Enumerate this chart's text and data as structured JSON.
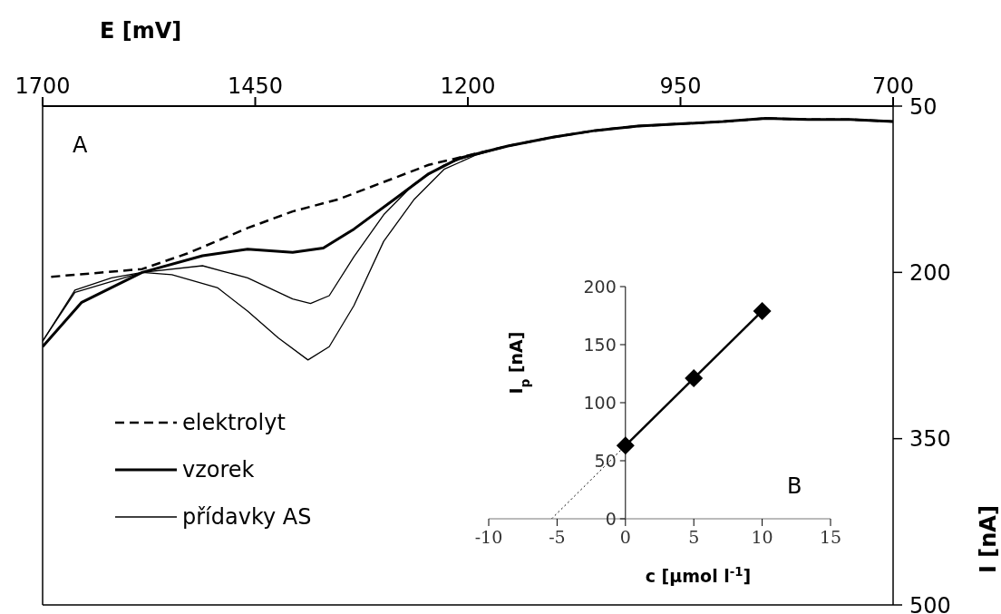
{
  "chart_data": [
    {
      "type": "line",
      "xlabel": "E [mV]",
      "ylabel": "I [nA]",
      "xlim": [
        1700,
        700
      ],
      "xticks": [
        1700,
        1450,
        1200,
        950,
        700
      ],
      "ylim": [
        500,
        50
      ],
      "yticks": [
        50,
        200,
        350,
        500
      ],
      "legend": "bottom left",
      "annotations": [
        "A"
      ],
      "series": [
        {
          "name": "elektrolyt",
          "color": "#000000",
          "line_style": "dashed",
          "x": [
            1690,
            1583,
            1530,
            1459,
            1406,
            1352,
            1246,
            1153,
            1100,
            1050,
            1000,
            950,
            900,
            850,
            800,
            750,
            700
          ],
          "values": [
            204,
            197,
            183,
            160,
            145,
            134,
            103,
            86,
            78,
            72,
            68,
            66,
            64,
            61,
            62,
            62,
            64
          ]
        },
        {
          "name": "vzorek",
          "color": "#000000",
          "line_style": "solid",
          "x": [
            1700,
            1654,
            1583,
            1512,
            1459,
            1406,
            1370,
            1334,
            1281,
            1246,
            1210,
            1153,
            1100,
            1050,
            1000,
            950,
            900,
            850,
            800,
            750,
            700
          ],
          "values": [
            267,
            227,
            200,
            185,
            179,
            182,
            178,
            161,
            131,
            111,
            97,
            86,
            78,
            72,
            68,
            66,
            64,
            61,
            62,
            62,
            64
          ]
        },
        {
          "name": "přídavky AS",
          "color": "#000000",
          "line_style": "solid",
          "x": [
            1700,
            1662,
            1619,
            1583,
            1512,
            1459,
            1406,
            1385,
            1363,
            1334,
            1299,
            1263,
            1228,
            1190,
            1153,
            1100,
            1050,
            1000,
            950,
            900,
            850,
            800,
            750,
            700
          ],
          "values": [
            262,
            216,
            205,
            200,
            194,
            205,
            224,
            228,
            221,
            186,
            148,
            120,
            103,
            93,
            86,
            78,
            72,
            68,
            66,
            64,
            61,
            62,
            62,
            64
          ]
        },
        {
          "color": "#000000",
          "line_style": "solid",
          "x": [
            1700,
            1662,
            1583,
            1548,
            1494,
            1459,
            1423,
            1388,
            1363,
            1334,
            1299,
            1263,
            1228,
            1190,
            1153,
            1100,
            1050,
            1000,
            950,
            900,
            850,
            800,
            750,
            700
          ],
          "values": [
            262,
            218,
            200,
            202,
            214,
            235,
            259,
            279,
            267,
            230,
            172,
            134,
            107,
            94,
            86,
            78,
            72,
            68,
            66,
            64,
            61,
            62,
            62,
            64
          ]
        }
      ]
    },
    {
      "type": "line",
      "xlabel": "c [µmol l$^{-1}$]",
      "ylabel": "I$_{p}$ [nA]",
      "xlim": [
        -10,
        15
      ],
      "xticks": [
        -10,
        -5,
        0,
        5,
        10,
        15
      ],
      "ylim": [
        0,
        200
      ],
      "yticks": [
        0,
        50,
        100,
        150,
        200
      ],
      "annotations": [
        "B"
      ],
      "series": [
        {
          "color": "#000000",
          "line_style": "solid",
          "marker": "diamond",
          "x": [
            0,
            5,
            10
          ],
          "values": [
            63,
            121,
            179
          ]
        },
        {
          "color": "#000000",
          "line_style": "dotted",
          "marker": "none",
          "x": [
            -5.4,
            0
          ],
          "values": [
            0,
            63
          ]
        }
      ]
    }
  ]
}
